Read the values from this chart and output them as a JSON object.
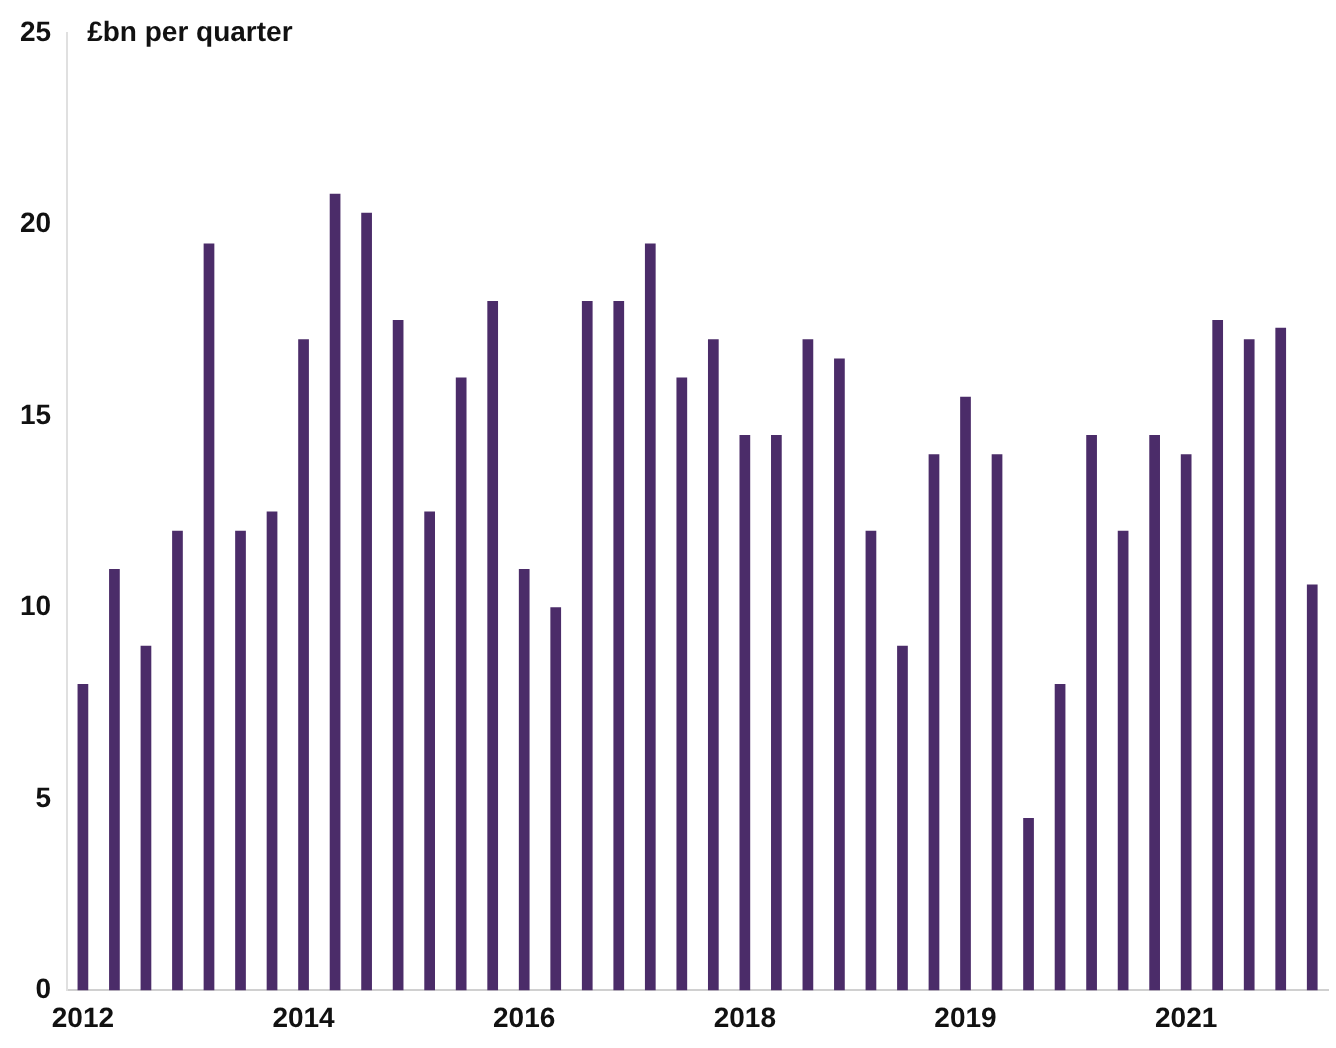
{
  "chart_data": {
    "type": "bar",
    "ylabel": "£bn per quarter",
    "categories": [
      "2012",
      null,
      null,
      null,
      null,
      null,
      null,
      "2014",
      null,
      null,
      null,
      null,
      null,
      null,
      "2016",
      null,
      null,
      null,
      null,
      null,
      null,
      "2018",
      null,
      null,
      null,
      null,
      null,
      null,
      "2019",
      null,
      null,
      null,
      null,
      null,
      null,
      "2021",
      null,
      null,
      null,
      null
    ],
    "values": [
      8,
      11,
      9,
      12,
      19.5,
      12,
      12.5,
      17,
      20.8,
      20.3,
      17.5,
      12.5,
      16,
      18,
      11,
      10,
      18,
      18,
      19.5,
      16,
      17,
      14.5,
      14.5,
      17,
      16.5,
      12,
      9,
      14,
      15.5,
      14,
      4.5,
      8,
      14.5,
      12,
      14.5,
      14,
      17.5,
      17,
      17.3,
      10.6
    ],
    "color": "#4b2c69",
    "ylim": [
      0,
      25
    ],
    "yticks": [
      0,
      5,
      10,
      15,
      20,
      25
    ],
    "grid": false,
    "legend": false
  }
}
